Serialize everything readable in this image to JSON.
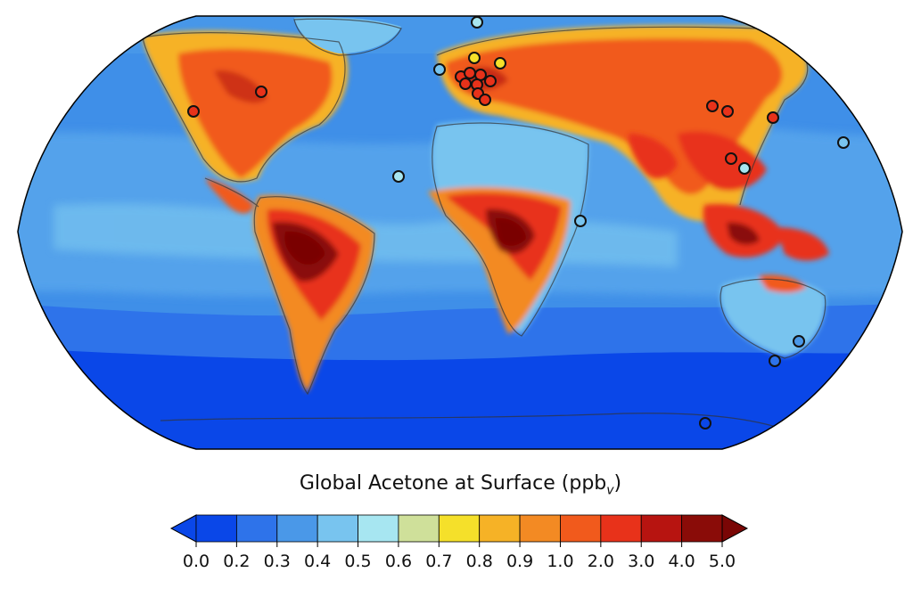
{
  "figure": {
    "title_main": "Global Acetone at Surface (ppb",
    "title_sub": "v",
    "title_close": ")"
  },
  "legend": {
    "ticks": [
      "0.0",
      "0.2",
      "0.3",
      "0.4",
      "0.5",
      "0.6",
      "0.7",
      "0.8",
      "0.9",
      "1.0",
      "2.0",
      "3.0",
      "4.0",
      "5.0"
    ],
    "colors": [
      "#0a47e8",
      "#2e73ea",
      "#4a98e8",
      "#78c4ef",
      "#a7e6f1",
      "#cfe09a",
      "#f5e02a",
      "#f6b226",
      "#f38a23",
      "#f15a1c",
      "#e8321a",
      "#b71410",
      "#8a0c08"
    ],
    "under_color": "#0a47e8",
    "over_color": "#7a0605",
    "extend": "both"
  },
  "map": {
    "projection": "Robinson",
    "ocean_color": "#3f8fe8",
    "southern_ocean_color": "#0a47e8"
  }
}
